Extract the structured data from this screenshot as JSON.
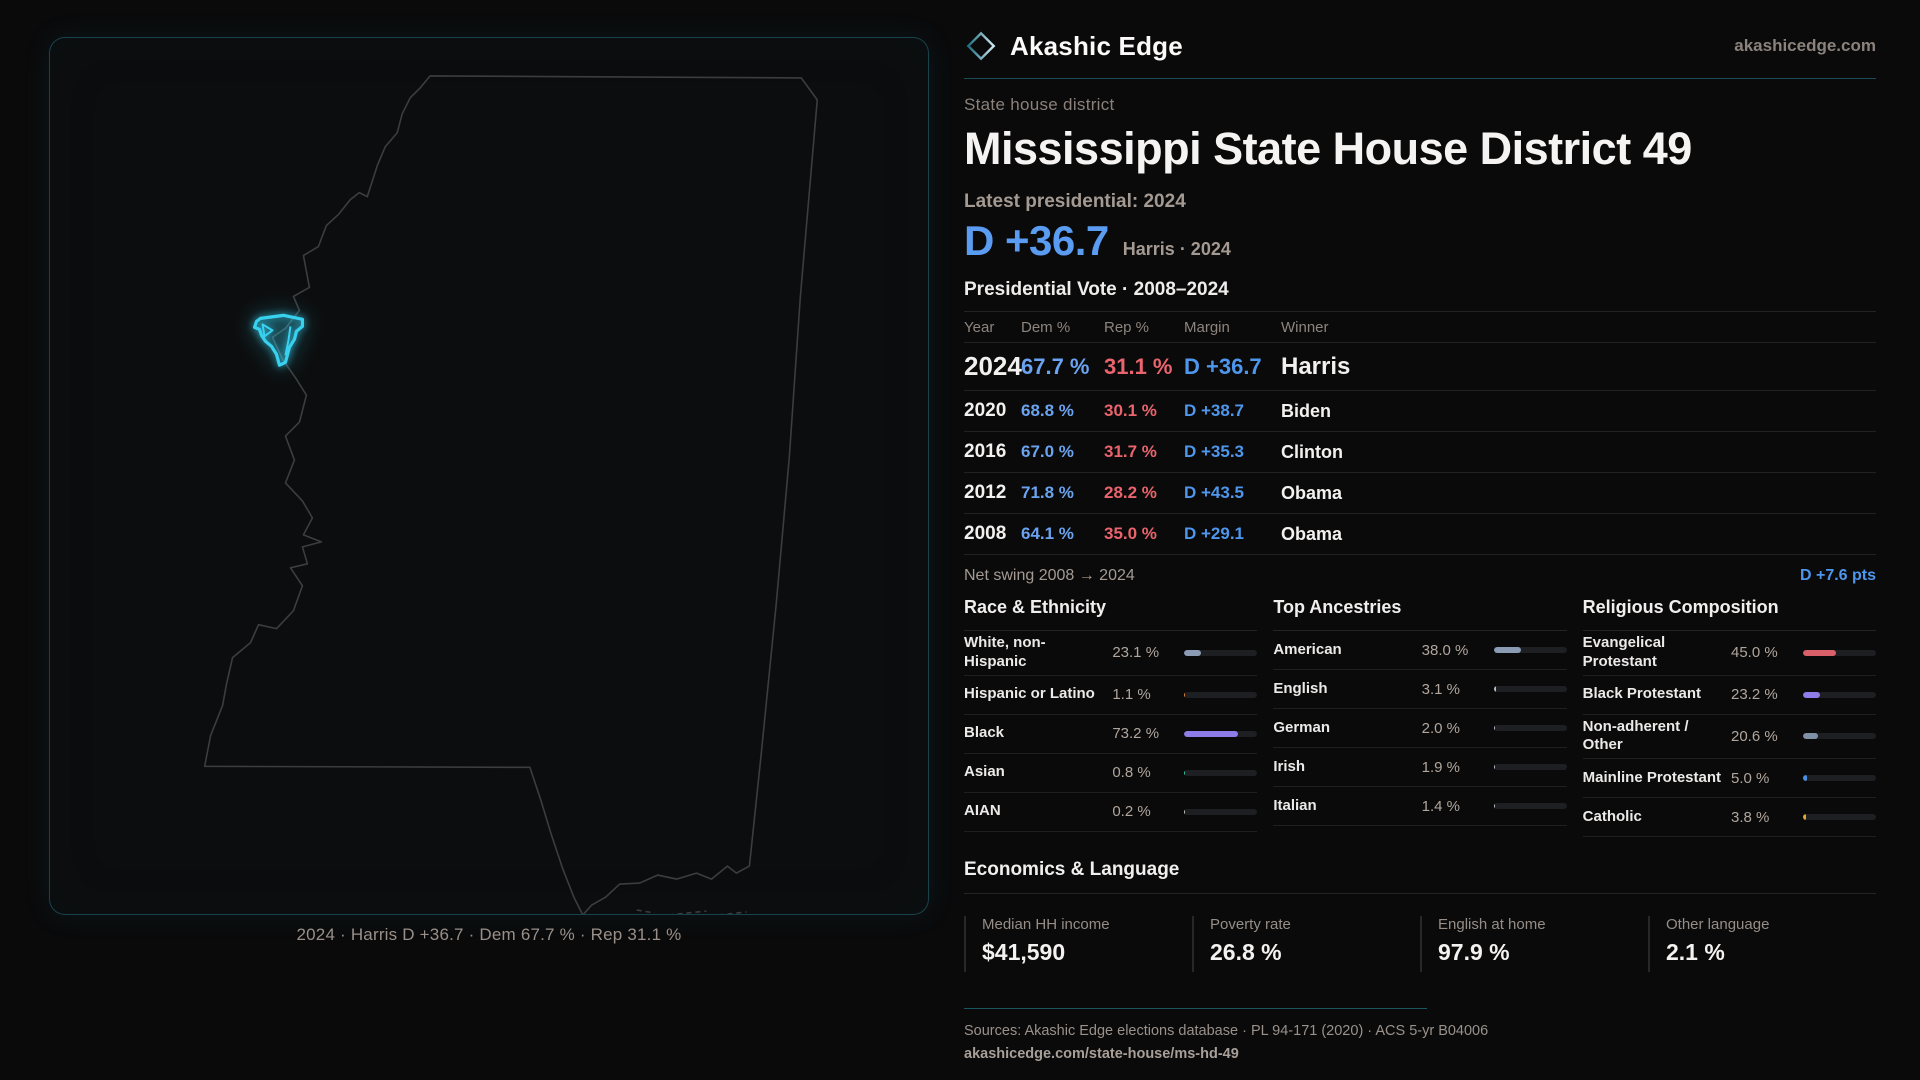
{
  "brand": {
    "name": "Akashic Edge",
    "site": "akashicedge.com"
  },
  "page": {
    "kicker": "State house district",
    "title": "Mississippi State House District 49",
    "latest_label": "Latest presidential: 2024",
    "headline_margin": "D +36.7",
    "headline_sub": "Harris · 2024",
    "table_title": "Presidential Vote · 2008–2024"
  },
  "vote_table": {
    "columns": {
      "year": "Year",
      "dem": "Dem %",
      "rep": "Rep %",
      "margin": "Margin",
      "winner": "Winner"
    },
    "rows": [
      {
        "year": "2024",
        "dem": "67.7 %",
        "rep": "31.1 %",
        "margin": "D +36.7",
        "winner": "Harris"
      },
      {
        "year": "2020",
        "dem": "68.8 %",
        "rep": "30.1 %",
        "margin": "D +38.7",
        "winner": "Biden"
      },
      {
        "year": "2016",
        "dem": "67.0 %",
        "rep": "31.7 %",
        "margin": "D +35.3",
        "winner": "Clinton"
      },
      {
        "year": "2012",
        "dem": "71.8 %",
        "rep": "28.2 %",
        "margin": "D +43.5",
        "winner": "Obama"
      },
      {
        "year": "2008",
        "dem": "64.1 %",
        "rep": "35.0 %",
        "margin": "D +29.1",
        "winner": "Obama"
      }
    ],
    "net_swing_label": "Net swing 2008 → 2024",
    "net_swing_value": "D +7.6 pts"
  },
  "demographics": [
    {
      "title": "Race & Ethnicity",
      "rows": [
        {
          "label": "White, non-Hispanic",
          "value": "23.1 %",
          "pct": 23.1,
          "color": "#8b9bb4"
        },
        {
          "label": "Hispanic or Latino",
          "value": "1.1 %",
          "pct": 1.1,
          "color": "#e0883c"
        },
        {
          "label": "Black",
          "value": "73.2 %",
          "pct": 73.2,
          "color": "#8e7ce8"
        },
        {
          "label": "Asian",
          "value": "0.8 %",
          "pct": 0.8,
          "color": "#2fbfa0"
        },
        {
          "label": "AIAN",
          "value": "0.2 %",
          "pct": 0.2,
          "color": "#c7c2bd"
        }
      ]
    },
    {
      "title": "Top Ancestries",
      "rows": [
        {
          "label": "American",
          "value": "38.0 %",
          "pct": 38.0,
          "color": "#8b9bb4"
        },
        {
          "label": "English",
          "value": "3.1 %",
          "pct": 3.1,
          "color": "#b9bec6"
        },
        {
          "label": "German",
          "value": "2.0 %",
          "pct": 2.0,
          "color": "#b9bec6"
        },
        {
          "label": "Irish",
          "value": "1.9 %",
          "pct": 1.9,
          "color": "#b9bec6"
        },
        {
          "label": "Italian",
          "value": "1.4 %",
          "pct": 1.4,
          "color": "#b9bec6"
        }
      ]
    },
    {
      "title": "Religious Composition",
      "rows": [
        {
          "label": "Evangelical Protestant",
          "value": "45.0 %",
          "pct": 45.0,
          "color": "#d95f68"
        },
        {
          "label": "Black Protestant",
          "value": "23.2 %",
          "pct": 23.2,
          "color": "#8e7ce8"
        },
        {
          "label": "Non-adherent / Other",
          "value": "20.6 %",
          "pct": 20.6,
          "color": "#7f8fa6"
        },
        {
          "label": "Mainline Protestant",
          "value": "5.0 %",
          "pct": 5.0,
          "color": "#4a90e2"
        },
        {
          "label": "Catholic",
          "value": "3.8 %",
          "pct": 3.8,
          "color": "#e0a832"
        }
      ]
    }
  ],
  "economics": {
    "title": "Economics & Language",
    "stats": [
      {
        "label": "Median HH income",
        "value": "$41,590"
      },
      {
        "label": "Poverty rate",
        "value": "26.8 %"
      },
      {
        "label": "English at home",
        "value": "97.9 %"
      },
      {
        "label": "Other language",
        "value": "2.1 %"
      }
    ]
  },
  "map": {
    "caption": "2024 · Harris D +36.7 · Dem 67.7 % · Rep 31.1 %"
  },
  "footer": {
    "sources": "Sources: Akashic Edge elections database · PL 94-171 (2020) · ACS 5-yr B04006",
    "permalink": "akashicedge.com/state-house/ms-hd-49"
  },
  "colors": {
    "accent_cyan": "#38d2f0",
    "dem_blue": "#6aa3f0",
    "rep_red": "#e9646c",
    "margin_blue": "#4e97ec",
    "panel_border_teal": "#2a8296",
    "background": "#0a0a0b"
  }
}
